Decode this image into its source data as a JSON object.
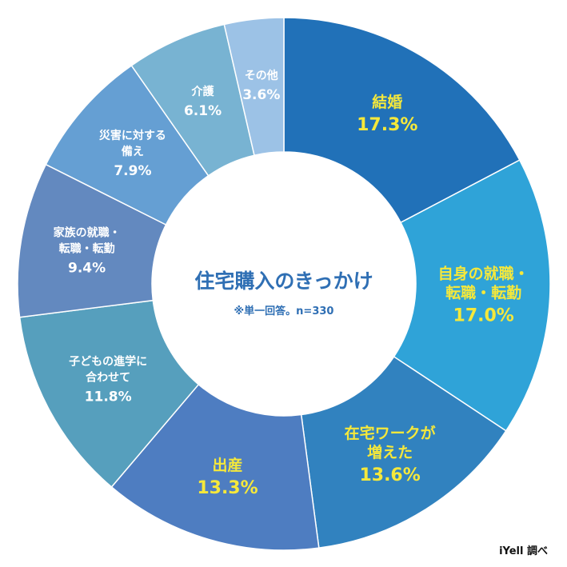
{
  "chart_data": {
    "type": "pie",
    "style": "donut",
    "title": "住宅購入のきっかけ",
    "note": "※単一回答。n=330",
    "source": "iYell 調べ",
    "slices": [
      {
        "label_lines": [
          "結婚"
        ],
        "value": 17.3,
        "value_text": "17.3%",
        "color": "#2171b8",
        "text_color": "yellow"
      },
      {
        "label_lines": [
          "自身の就職・",
          "転職・転勤"
        ],
        "value": 17.0,
        "value_text": "17.0%",
        "color": "#2fa3d8",
        "text_color": "yellow"
      },
      {
        "label_lines": [
          "在宅ワークが",
          "増えた"
        ],
        "value": 13.6,
        "value_text": "13.6%",
        "color": "#3182bf",
        "text_color": "yellow"
      },
      {
        "label_lines": [
          "出産"
        ],
        "value": 13.3,
        "value_text": "13.3%",
        "color": "#4e7dc1",
        "text_color": "yellow"
      },
      {
        "label_lines": [
          "子どもの進学に",
          "合わせて"
        ],
        "value": 11.8,
        "value_text": "11.8%",
        "color": "#569fbd",
        "text_color": "white"
      },
      {
        "label_lines": [
          "家族の就職・",
          "転職・転勤"
        ],
        "value": 9.4,
        "value_text": "9.4%",
        "color": "#6389bf",
        "text_color": "white"
      },
      {
        "label_lines": [
          "災害に対する",
          "備え"
        ],
        "value": 7.9,
        "value_text": "7.9%",
        "color": "#659fd3",
        "text_color": "white"
      },
      {
        "label_lines": [
          "介護"
        ],
        "value": 6.1,
        "value_text": "6.1%",
        "color": "#78b3d2",
        "text_color": "white"
      },
      {
        "label_lines": [
          "その他"
        ],
        "value": 3.6,
        "value_text": "3.6%",
        "color": "#9cc2e6",
        "text_color": "white"
      }
    ]
  }
}
